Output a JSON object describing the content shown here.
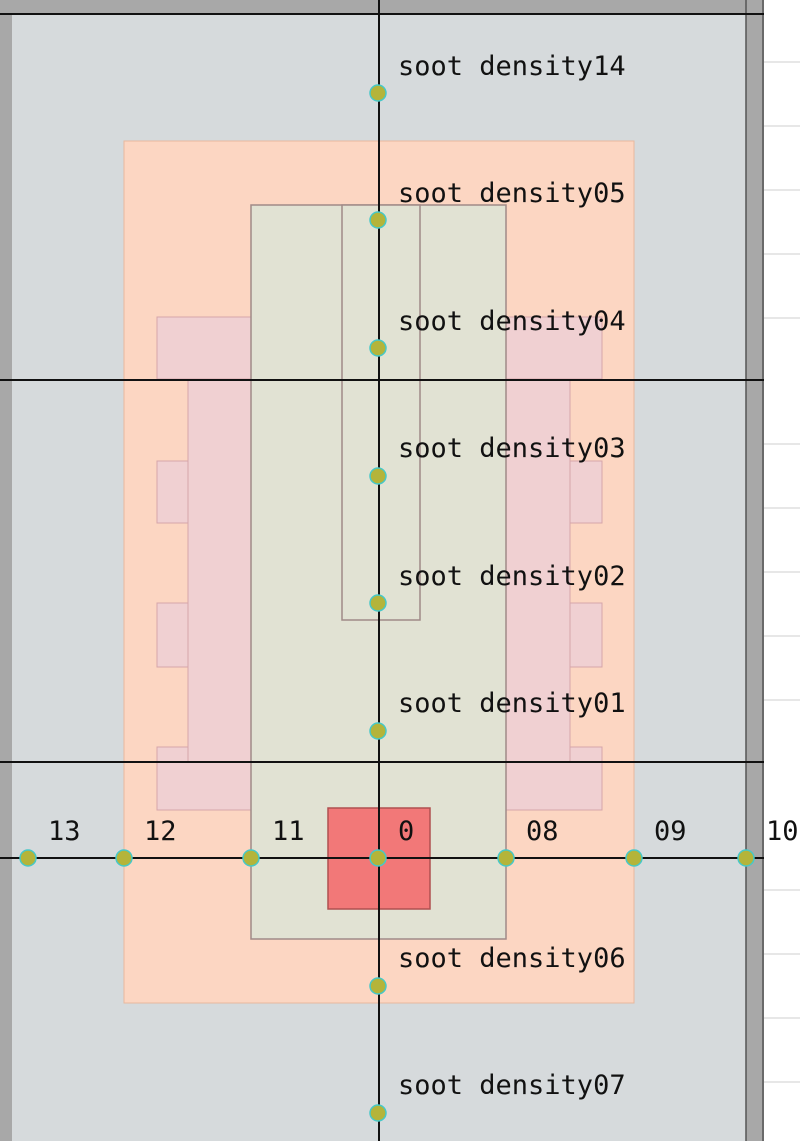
{
  "colors": {
    "grid_bg": "#d6dadc",
    "frame": "#a8a8a8",
    "outer_zone": "#fcd6c2",
    "wall_blocks": "#f0d0d2",
    "inner_zone": "#e1e2d3",
    "fire_source": "#f27878",
    "sensor_fill": "#b4b43a",
    "sensor_ring": "#46c8c8",
    "axis_line": "#111111"
  },
  "sensors": [
    {
      "id": "soot-density14",
      "label": "soot density14"
    },
    {
      "id": "soot-density05",
      "label": "soot density05"
    },
    {
      "id": "soot-density04",
      "label": "soot density04"
    },
    {
      "id": "soot-density03",
      "label": "soot density03"
    },
    {
      "id": "soot-density02",
      "label": "soot density02"
    },
    {
      "id": "soot-density01",
      "label": "soot density01"
    },
    {
      "id": "point-13",
      "label": "13"
    },
    {
      "id": "point-12",
      "label": "12"
    },
    {
      "id": "point-11",
      "label": "11"
    },
    {
      "id": "point-0",
      "label": "0"
    },
    {
      "id": "point-08",
      "label": "08"
    },
    {
      "id": "point-09",
      "label": "09"
    },
    {
      "id": "point-10",
      "label": "10"
    },
    {
      "id": "soot-density06",
      "label": "soot density06"
    },
    {
      "id": "soot-density07",
      "label": "soot density07"
    }
  ]
}
